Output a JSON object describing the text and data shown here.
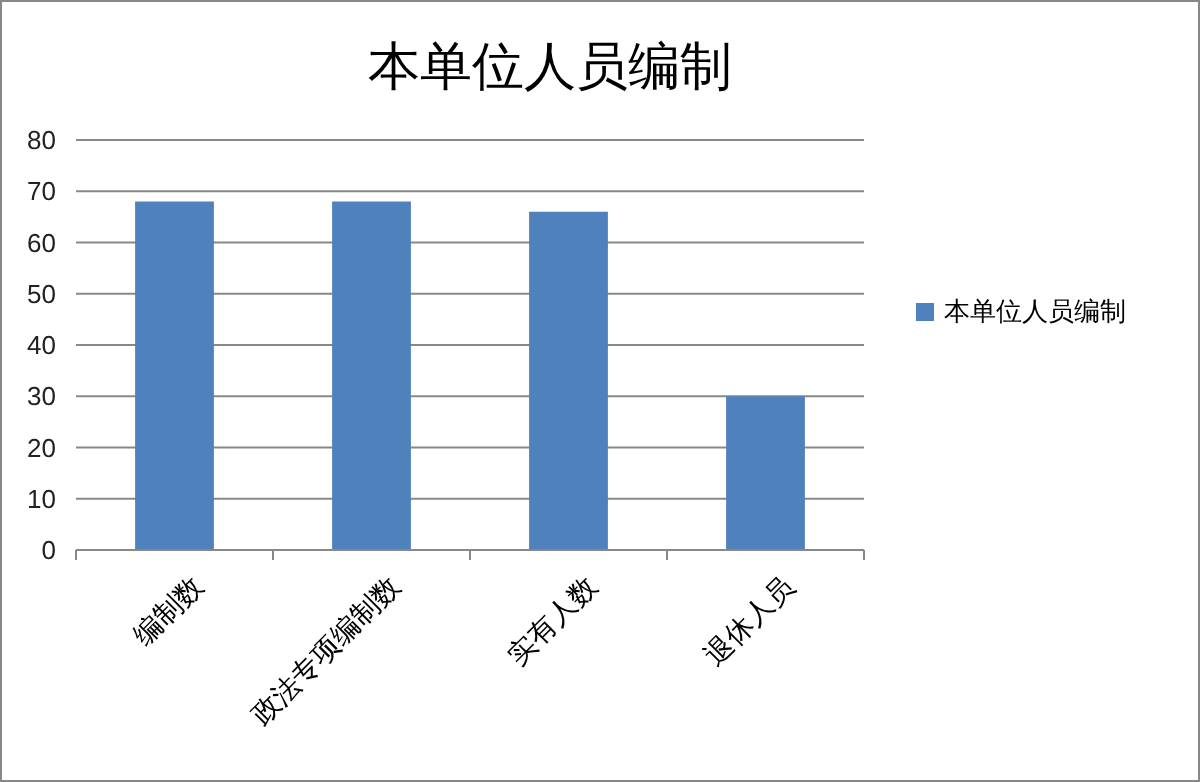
{
  "chart_data": {
    "type": "bar",
    "title": "本单位人员编制",
    "categories": [
      "编制数",
      "政法专项编制数",
      "实有人数",
      "退休人员"
    ],
    "series": [
      {
        "name": "本单位人员编制",
        "color": "#4f81bd",
        "values": [
          68,
          68,
          66,
          30
        ]
      }
    ],
    "ylim": [
      0,
      80
    ],
    "yticks": [
      0,
      10,
      20,
      30,
      40,
      50,
      60,
      70,
      80
    ],
    "grid": "y",
    "legend": "right"
  }
}
